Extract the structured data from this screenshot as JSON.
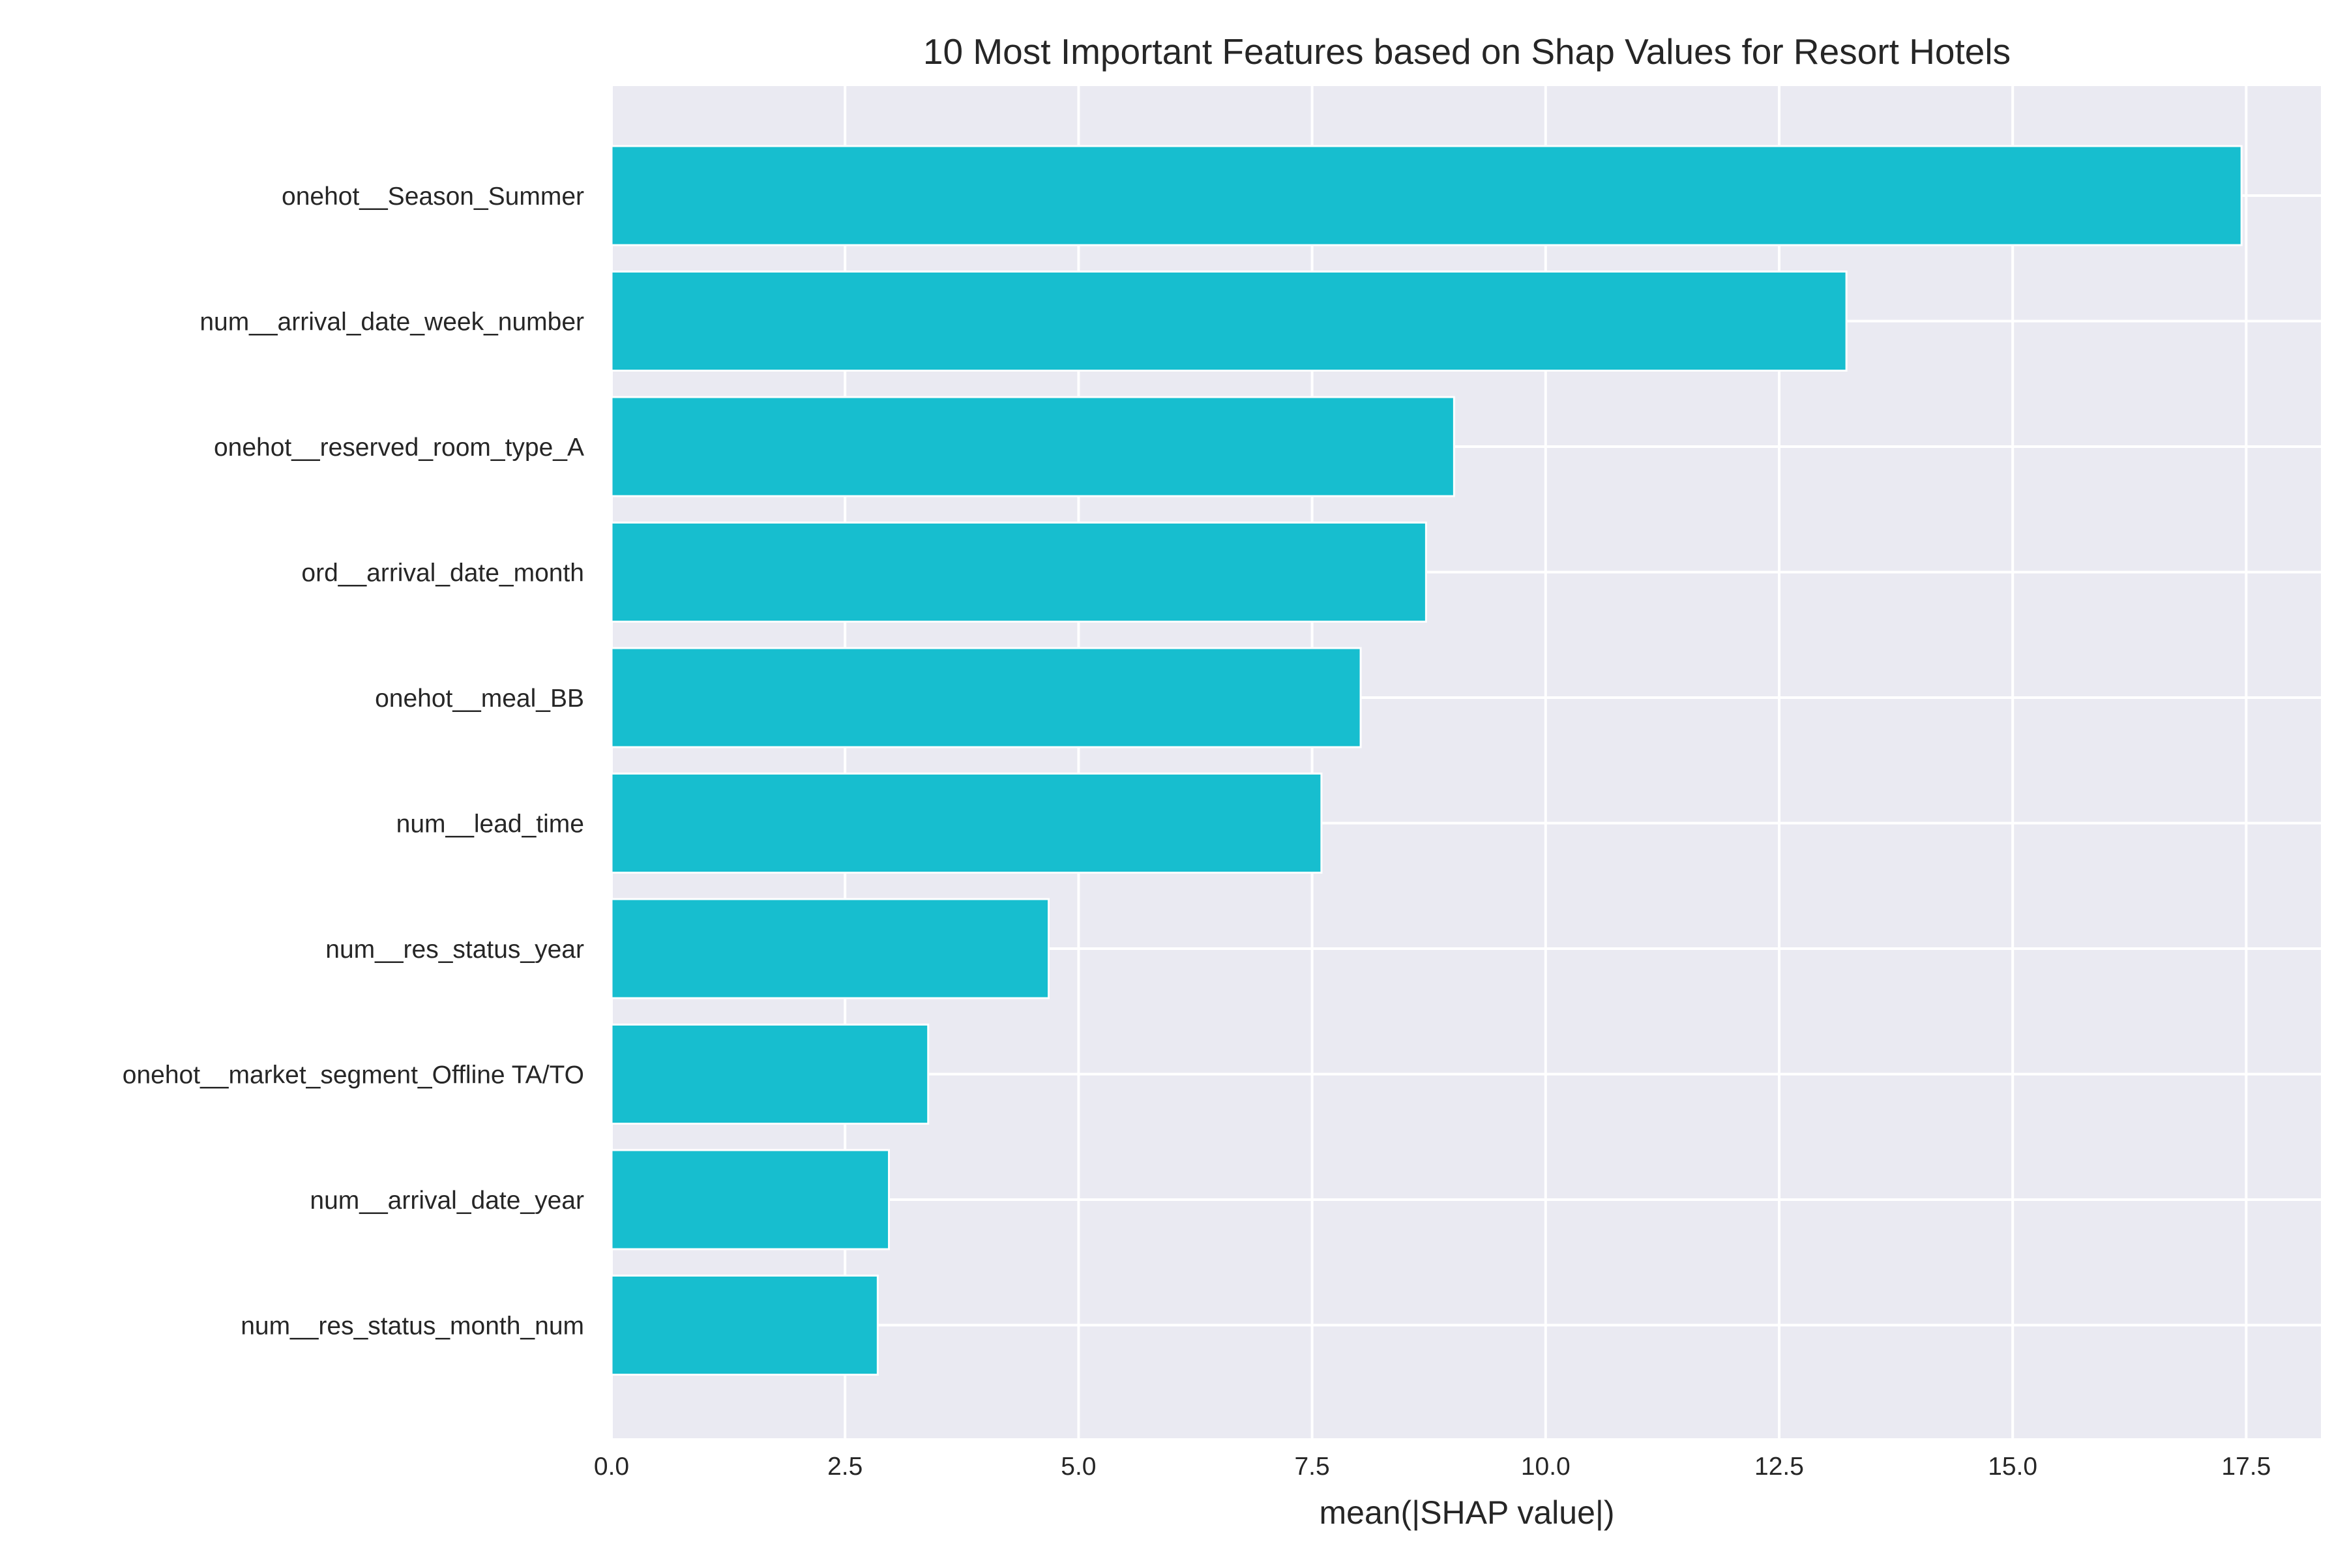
{
  "chart_data": {
    "type": "bar",
    "orientation": "horizontal",
    "title": "10 Most Important Features based on Shap Values for Resort Hotels",
    "xlabel": "mean(|SHAP value|)",
    "ylabel": "",
    "categories": [
      "onehot__Season_Summer",
      "num__arrival_date_week_number",
      "onehot__reserved_room_type_A",
      "ord__arrival_date_month",
      "onehot__meal_BB",
      "num__lead_time",
      "num__res_status_year",
      "onehot__market_segment_Offline TA/TO",
      "num__arrival_date_year",
      "num__res_status_month_num"
    ],
    "values": [
      17.45,
      13.22,
      9.02,
      8.72,
      8.02,
      7.6,
      4.68,
      3.39,
      2.97,
      2.85
    ],
    "xlim": [
      0,
      18.3
    ],
    "xticks": [
      0.0,
      2.5,
      5.0,
      7.5,
      10.0,
      12.5,
      15.0,
      17.5
    ],
    "xtick_labels": [
      "0.0",
      "2.5",
      "5.0",
      "7.5",
      "10.0",
      "12.5",
      "15.0",
      "17.5"
    ],
    "grid": true,
    "legend": "none",
    "colors": {
      "bar": "#17becf",
      "bar_edge": "#ffffff",
      "plot_background": "#eaeaf2",
      "grid": "#ffffff",
      "text": "#262626"
    }
  }
}
